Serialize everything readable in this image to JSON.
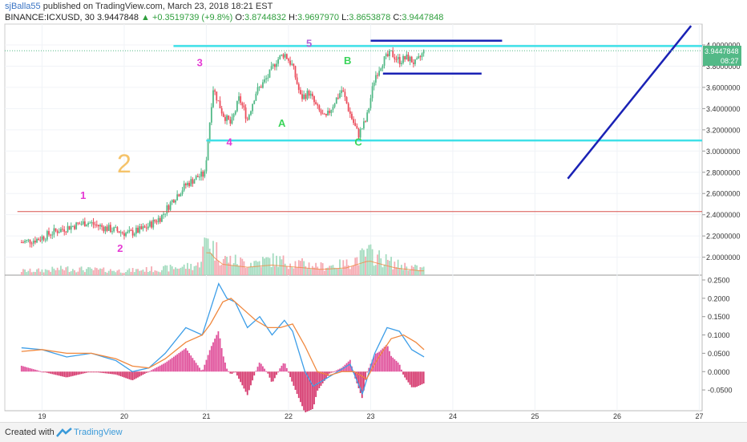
{
  "header": {
    "user": "sjBalla55",
    "published": "published on TradingView.com, March 23, 2018 18:21 EST",
    "symbol": "BINANCE:ICXUSD, 30",
    "last": "3.9447848",
    "change": "+0.3519739 (+9.8%)",
    "o_label": "O:",
    "o": "3.8744832",
    "h_label": "H:",
    "h": "3.9697970",
    "l_label": "L:",
    "l": "3.8653878",
    "c_label": "C:",
    "c": "3.9447848"
  },
  "price_badge": {
    "value": "3.9447848",
    "timer": "08:27"
  },
  "footer": {
    "created": "Created with",
    "brand": "TradingView"
  },
  "colors": {
    "up": "#53b987",
    "down": "#eb4d5c",
    "cyan": "#3fe0e8",
    "navy": "#1a22b5",
    "red_line": "#d9534f",
    "macd": "#3d9ee8",
    "signal": "#f0883e"
  },
  "chart_data": {
    "type": "candlestick",
    "x_ticks": [
      "19",
      "20",
      "21",
      "22",
      "23",
      "24",
      "25",
      "26",
      "27"
    ],
    "price_axis": {
      "ticks": [
        "4.0000000",
        "3.8000000",
        "3.6000000",
        "3.4000000",
        "3.2000000",
        "3.0000000",
        "2.8000000",
        "2.6000000",
        "2.4000000",
        "2.2000000",
        "2.0000000"
      ],
      "ylim": [
        1.85,
        4.1
      ]
    },
    "macd_axis": {
      "ticks": [
        "0.2500",
        "0.2000",
        "0.1500",
        "0.1000",
        "0.0500",
        "0.0000",
        "-0.0500"
      ],
      "ylim": [
        -0.085,
        0.26
      ]
    },
    "close_path": [
      [
        18.75,
        2.14
      ],
      [
        18.95,
        2.17
      ],
      [
        19.15,
        2.24
      ],
      [
        19.35,
        2.29
      ],
      [
        19.55,
        2.33
      ],
      [
        19.75,
        2.28
      ],
      [
        19.9,
        2.25
      ],
      [
        20.05,
        2.22
      ],
      [
        20.25,
        2.27
      ],
      [
        20.45,
        2.38
      ],
      [
        20.6,
        2.55
      ],
      [
        20.75,
        2.68
      ],
      [
        20.9,
        2.76
      ],
      [
        20.98,
        2.78
      ],
      [
        21.03,
        3.18
      ],
      [
        21.08,
        3.6
      ],
      [
        21.2,
        3.35
      ],
      [
        21.3,
        3.25
      ],
      [
        21.4,
        3.5
      ],
      [
        21.5,
        3.3
      ],
      [
        21.6,
        3.55
      ],
      [
        21.75,
        3.7
      ],
      [
        21.85,
        3.85
      ],
      [
        21.95,
        3.92
      ],
      [
        22.05,
        3.8
      ],
      [
        22.15,
        3.5
      ],
      [
        22.25,
        3.55
      ],
      [
        22.35,
        3.4
      ],
      [
        22.45,
        3.3
      ],
      [
        22.55,
        3.45
      ],
      [
        22.65,
        3.58
      ],
      [
        22.75,
        3.35
      ],
      [
        22.85,
        3.15
      ],
      [
        22.95,
        3.3
      ],
      [
        23.05,
        3.7
      ],
      [
        23.15,
        3.85
      ],
      [
        23.25,
        3.92
      ],
      [
        23.35,
        3.85
      ],
      [
        23.45,
        3.88
      ],
      [
        23.55,
        3.82
      ],
      [
        23.65,
        3.94
      ]
    ],
    "volume": [
      [
        18.9,
        0.08
      ],
      [
        19.3,
        0.12
      ],
      [
        19.6,
        0.1
      ],
      [
        20.0,
        0.08
      ],
      [
        20.5,
        0.12
      ],
      [
        20.9,
        0.18
      ],
      [
        21.03,
        0.75
      ],
      [
        21.06,
        0.55
      ],
      [
        21.2,
        0.3
      ],
      [
        21.5,
        0.22
      ],
      [
        21.8,
        0.28
      ],
      [
        22.1,
        0.22
      ],
      [
        22.4,
        0.16
      ],
      [
        22.7,
        0.2
      ],
      [
        22.98,
        0.4
      ],
      [
        23.05,
        0.35
      ],
      [
        23.3,
        0.2
      ],
      [
        23.6,
        0.12
      ]
    ],
    "macd_path": [
      [
        18.75,
        0.065
      ],
      [
        19.0,
        0.06
      ],
      [
        19.3,
        0.04
      ],
      [
        19.6,
        0.05
      ],
      [
        19.9,
        0.03
      ],
      [
        20.1,
        0.0
      ],
      [
        20.3,
        0.01
      ],
      [
        20.5,
        0.05
      ],
      [
        20.75,
        0.12
      ],
      [
        20.95,
        0.1
      ],
      [
        21.05,
        0.17
      ],
      [
        21.15,
        0.24
      ],
      [
        21.25,
        0.2
      ],
      [
        21.35,
        0.19
      ],
      [
        21.5,
        0.12
      ],
      [
        21.65,
        0.15
      ],
      [
        21.8,
        0.1
      ],
      [
        21.95,
        0.14
      ],
      [
        22.05,
        0.11
      ],
      [
        22.2,
        0.0
      ],
      [
        22.3,
        -0.04
      ],
      [
        22.45,
        -0.02
      ],
      [
        22.6,
        0.0
      ],
      [
        22.75,
        0.02
      ],
      [
        22.9,
        -0.06
      ],
      [
        23.05,
        0.05
      ],
      [
        23.2,
        0.12
      ],
      [
        23.35,
        0.11
      ],
      [
        23.5,
        0.06
      ],
      [
        23.65,
        0.04
      ]
    ],
    "signal_path": [
      [
        18.75,
        0.055
      ],
      [
        19.0,
        0.06
      ],
      [
        19.3,
        0.05
      ],
      [
        19.6,
        0.05
      ],
      [
        19.9,
        0.035
      ],
      [
        20.1,
        0.015
      ],
      [
        20.3,
        0.01
      ],
      [
        20.5,
        0.035
      ],
      [
        20.75,
        0.08
      ],
      [
        20.95,
        0.1
      ],
      [
        21.05,
        0.13
      ],
      [
        21.2,
        0.19
      ],
      [
        21.3,
        0.2
      ],
      [
        21.45,
        0.17
      ],
      [
        21.6,
        0.14
      ],
      [
        21.75,
        0.12
      ],
      [
        21.9,
        0.12
      ],
      [
        22.05,
        0.13
      ],
      [
        22.2,
        0.07
      ],
      [
        22.35,
        0.0
      ],
      [
        22.5,
        -0.01
      ],
      [
        22.65,
        0.0
      ],
      [
        22.8,
        0.0
      ],
      [
        22.95,
        -0.02
      ],
      [
        23.1,
        0.04
      ],
      [
        23.25,
        0.09
      ],
      [
        23.4,
        0.1
      ],
      [
        23.55,
        0.08
      ],
      [
        23.65,
        0.06
      ]
    ],
    "hlines": [
      {
        "price": 2.43,
        "from": 18.7,
        "to": 27.3,
        "color": "red_line"
      },
      {
        "price": 3.99,
        "from": 20.6,
        "to": 27.3,
        "color": "cyan"
      },
      {
        "price": 3.1,
        "from": 21.0,
        "to": 27.3,
        "color": "cyan"
      },
      {
        "price": 4.04,
        "from": 23.0,
        "to": 24.6,
        "color": "navy"
      },
      {
        "price": 3.73,
        "from": 23.15,
        "to": 24.35,
        "color": "navy"
      }
    ],
    "trendline": {
      "from": [
        25.4,
        2.74
      ],
      "to": [
        26.9,
        4.18
      ],
      "color": "navy"
    },
    "annotations": [
      {
        "text": "1",
        "x": 19.5,
        "y": 2.55,
        "color": "#e53ad4"
      },
      {
        "text": "2",
        "x": 19.95,
        "y": 2.05,
        "color": "#e53ad4"
      },
      {
        "text": "2",
        "x": 20.0,
        "y": 2.8,
        "color": "#f5c36a"
      },
      {
        "text": "3",
        "x": 20.92,
        "y": 3.8,
        "color": "#e53ad4"
      },
      {
        "text": "4",
        "x": 21.28,
        "y": 3.05,
        "color": "#e53ad4"
      },
      {
        "text": "5",
        "x": 22.25,
        "y": 3.98,
        "color": "#b062d9"
      },
      {
        "text": "A",
        "x": 21.92,
        "y": 3.23,
        "color": "#3ad45a"
      },
      {
        "text": "B",
        "x": 22.72,
        "y": 3.82,
        "color": "#3ad45a"
      },
      {
        "text": "C",
        "x": 22.85,
        "y": 3.05,
        "color": "#3ad45a"
      }
    ]
  }
}
